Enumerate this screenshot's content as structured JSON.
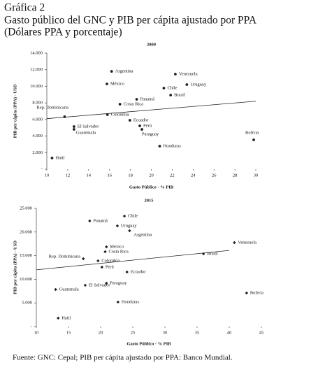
{
  "header": {
    "label": "Gráfica 2",
    "title": "Gasto público del GNC y PIB per cápita ajustado por PPA",
    "subtitle": "(Dólares PPA y porcentaje)"
  },
  "chart_data": [
    {
      "type": "scatter",
      "title": "2000",
      "x_label": "Gasto Público - % PIB",
      "y_label": "PIB per cápita (PPA) - USD",
      "marker": "circle",
      "color": "#222222",
      "labels": [
        "Argentina",
        "Venezuela",
        "México",
        "Uruguay",
        "Chile",
        "Brasil",
        "Panamá",
        "Costa Rica",
        "Rep. Dominicana",
        "Colombia",
        "Ecuador",
        "Perú",
        "Paraguay",
        "El Salvador",
        "Guatemala",
        "Honduras",
        "Bolivia",
        "Haití"
      ],
      "x": [
        16.2,
        22.3,
        15.75,
        23.4,
        21.2,
        21.85,
        18.6,
        17.0,
        11.7,
        15.8,
        17.95,
        18.9,
        19.1,
        12.6,
        12.6,
        20.8,
        29.8,
        10.5
      ],
      "values": [
        11800,
        11470,
        10290,
        10200,
        9780,
        8940,
        8430,
        7840,
        6330,
        6580,
        5900,
        5230,
        4800,
        5140,
        4810,
        2780,
        3540,
        1350
      ],
      "trendline": {
        "x": [
          10,
          30
        ],
        "values": [
          6100,
          8200
        ]
      },
      "xlim": [
        10,
        30
      ],
      "xticks": [
        10,
        12,
        14,
        16,
        18,
        20,
        22,
        24,
        26,
        28,
        30
      ],
      "ylim": [
        0,
        14000
      ],
      "yticks": [
        {
          "value": 0,
          "label": "-"
        },
        {
          "value": 2000,
          "label": "2.000"
        },
        {
          "value": 4000,
          "label": "4.000"
        },
        {
          "value": 6000,
          "label": "6.000"
        },
        {
          "value": 8000,
          "label": "8.000"
        },
        {
          "value": 10000,
          "label": "10.000"
        },
        {
          "value": 12000,
          "label": "12.000"
        },
        {
          "value": 14000,
          "label": "14.000"
        }
      ]
    },
    {
      "type": "scatter",
      "title": "2015",
      "x_label": "Gasto Público - % PIB",
      "y_label": "PIB per cápita (PPA) - USD",
      "marker": "diamond",
      "color": "#222222",
      "labels": [
        "Chile",
        "Panamá",
        "Uruguay",
        "Argentina",
        "México",
        "Venezuela",
        "Brasil",
        "Costa Rica",
        "Rep. Dominicana",
        "Colombia",
        "Perú",
        "Ecuador",
        "Paraguay",
        "El Salvador",
        "Guatemala",
        "Bolivia",
        "Honduras",
        "Haití"
      ],
      "x": [
        23.7,
        18.3,
        22.6,
        24.5,
        20.9,
        40.8,
        36.0,
        20.7,
        17.3,
        19.6,
        20.2,
        24.1,
        20.9,
        17.6,
        13.0,
        42.7,
        22.7,
        13.4
      ],
      "values": [
        23370,
        22340,
        21300,
        20270,
        16860,
        17750,
        15380,
        15830,
        14350,
        13900,
        12570,
        11540,
        9170,
        8730,
        7840,
        7100,
        5180,
        1780
      ],
      "trendline": {
        "x": [
          10,
          40
        ],
        "values": [
          12000,
          16100
        ]
      },
      "xlim": [
        10,
        45
      ],
      "xticks": [
        10,
        15,
        20,
        25,
        30,
        35,
        40,
        45
      ],
      "ylim": [
        0,
        25000
      ],
      "yticks": [
        {
          "value": 0,
          "label": "-"
        },
        {
          "value": 5000,
          "label": "5.000"
        },
        {
          "value": 10000,
          "label": "10.000"
        },
        {
          "value": 15000,
          "label": "15.000"
        },
        {
          "value": 20000,
          "label": "20.000"
        },
        {
          "value": 25000,
          "label": "25.000"
        }
      ]
    }
  ],
  "source": "Fuente: GNC: Cepal; PIB per cápita ajustado por PPA: Banco Mundial."
}
